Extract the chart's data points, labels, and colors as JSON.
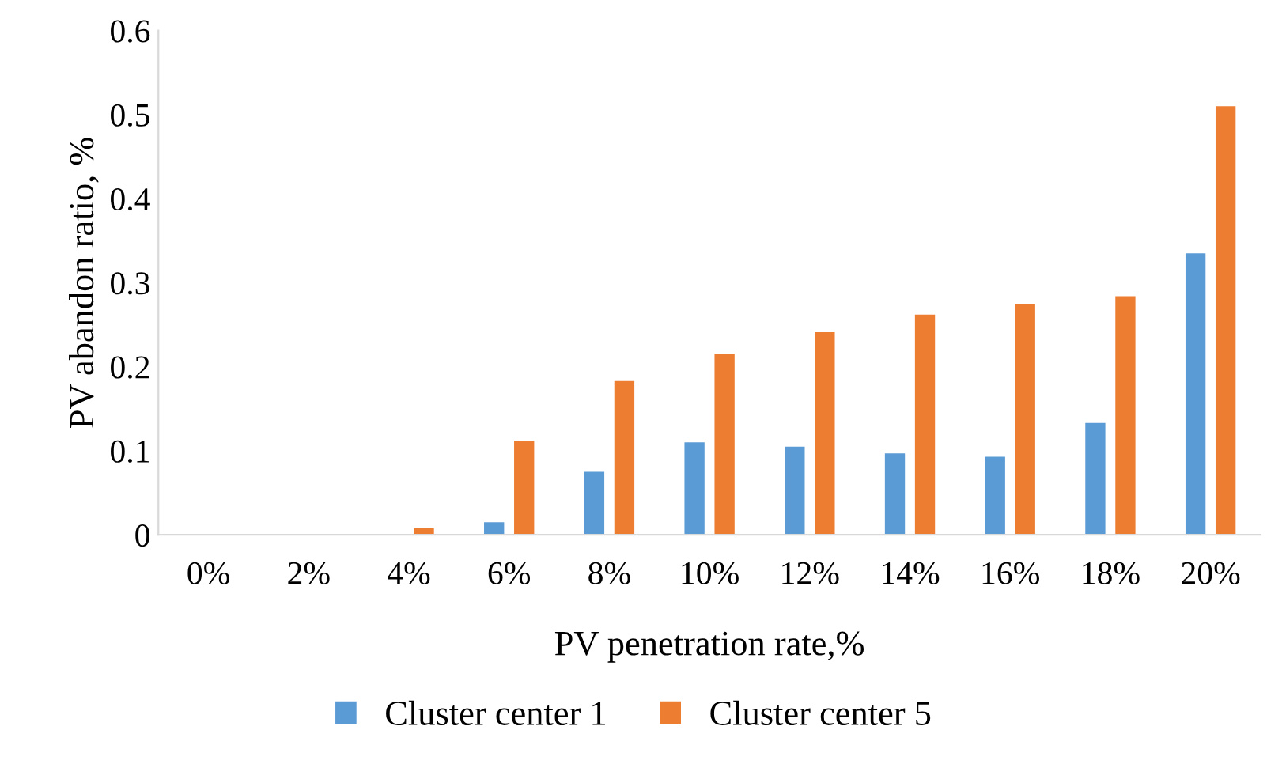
{
  "chart_data": {
    "type": "bar",
    "xlabel": "PV penetration rate,%",
    "ylabel": "PV abandon ratio, %",
    "categories": [
      "0%",
      "2%",
      "4%",
      "6%",
      "8%",
      "10%",
      "12%",
      "14%",
      "16%",
      "18%",
      "20%"
    ],
    "series": [
      {
        "name": "Cluster center 1",
        "color": "#5b9bd5",
        "values": [
          0,
          0,
          0,
          0.015,
          0.075,
          0.11,
          0.105,
          0.097,
          0.093,
          0.133,
          0.335
        ]
      },
      {
        "name": "Cluster center 5",
        "color": "#ed7d31",
        "values": [
          0,
          0,
          0.008,
          0.112,
          0.183,
          0.215,
          0.241,
          0.262,
          0.275,
          0.284,
          0.51
        ]
      }
    ],
    "ylim": [
      0,
      0.6
    ],
    "yticks": [
      {
        "value": 0,
        "label": "0"
      },
      0.1,
      0.2,
      0.3,
      0.4,
      0.5,
      0.6
    ],
    "grid": false,
    "legend": "bottom"
  }
}
